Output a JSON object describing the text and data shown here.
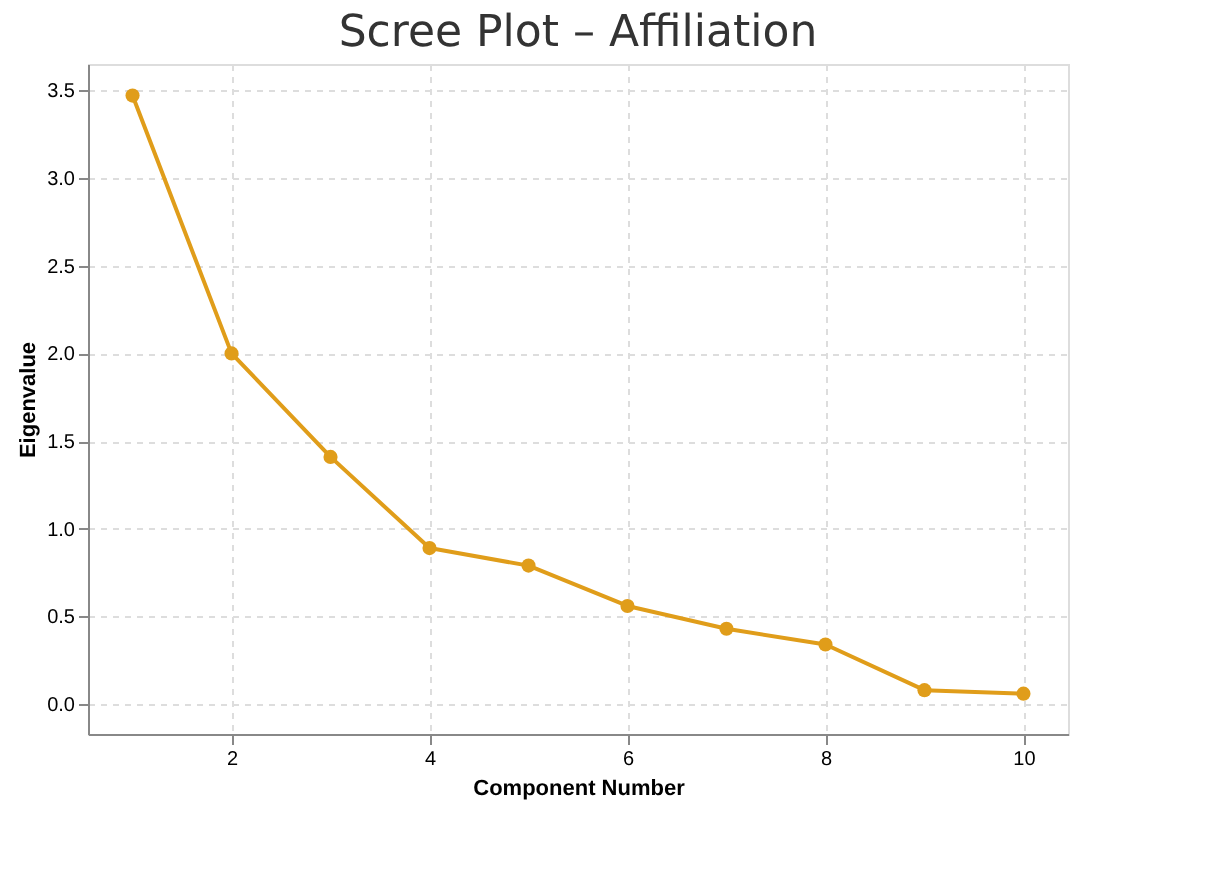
{
  "chart_data": {
    "type": "line",
    "title": "Scree Plot – Affiliation",
    "xlabel": "Component Number",
    "ylabel": "Eigenvalue",
    "x": [
      1,
      2,
      3,
      4,
      5,
      6,
      7,
      8,
      9,
      10
    ],
    "series": [
      {
        "color": "#e09d1a",
        "values": [
          3.47,
          2.0,
          1.41,
          0.89,
          0.79,
          0.56,
          0.43,
          0.34,
          0.08,
          0.06
        ]
      }
    ],
    "xlim": [
      0.55,
      10.45
    ],
    "xticks": [
      2,
      4,
      6,
      8,
      10
    ],
    "ylim": [
      -0.17,
      3.65
    ],
    "yticks": [
      {
        "value": 0,
        "label": "0.0"
      },
      0.5,
      {
        "value": 1,
        "label": "1.0"
      },
      1.5,
      {
        "value": 2,
        "label": "2.0"
      },
      2.5,
      {
        "value": 3,
        "label": "3.0"
      },
      3.5
    ],
    "grid": true,
    "marker": "circle",
    "line_style": "solid"
  }
}
